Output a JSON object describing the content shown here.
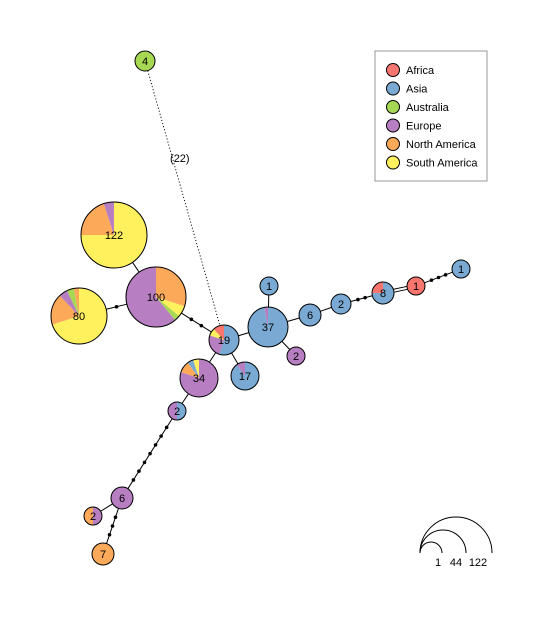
{
  "colors": {
    "Africa": "#f8766d",
    "Asia": "#7aaad3",
    "Australia": "#a6d854",
    "Europe": "#b77fc2",
    "North America": "#fca95a",
    "South America": "#fff05e"
  },
  "legend": [
    {
      "label": "Africa",
      "color": "#f8766d"
    },
    {
      "label": "Asia",
      "color": "#7aaad3"
    },
    {
      "label": "Australia",
      "color": "#a6d854"
    },
    {
      "label": "Europe",
      "color": "#b77fc2"
    },
    {
      "label": "North America",
      "color": "#fca95a"
    },
    {
      "label": "South America",
      "color": "#fff05e"
    }
  ],
  "nodes": [
    {
      "id": "n4",
      "count": "4",
      "slices": [
        [
          "Australia",
          1
        ]
      ]
    },
    {
      "id": "n122",
      "count": "122",
      "slices": [
        [
          "South America",
          0.75
        ],
        [
          "North America",
          0.2
        ],
        [
          "Europe",
          0.05
        ]
      ]
    },
    {
      "id": "n100",
      "count": "100",
      "slices": [
        [
          "North America",
          0.3
        ],
        [
          "South America",
          0.06
        ],
        [
          "Australia",
          0.03
        ],
        [
          "Europe",
          0.61
        ]
      ]
    },
    {
      "id": "n80",
      "count": "80",
      "slices": [
        [
          "South America",
          0.7
        ],
        [
          "North America",
          0.18
        ],
        [
          "Europe",
          0.05
        ],
        [
          "Australia",
          0.04
        ],
        [
          "North America",
          0.03
        ]
      ]
    },
    {
      "id": "n19",
      "count": "19",
      "slices": [
        [
          "Asia",
          0.55
        ],
        [
          "Europe",
          0.25
        ],
        [
          "South America",
          0.08
        ],
        [
          "Africa",
          0.12
        ]
      ]
    },
    {
      "id": "n34",
      "count": "34",
      "slices": [
        [
          "Europe",
          0.8
        ],
        [
          "North America",
          0.1
        ],
        [
          "Asia",
          0.05
        ],
        [
          "South America",
          0.05
        ]
      ]
    },
    {
      "id": "n17",
      "count": "17",
      "slices": [
        [
          "Asia",
          0.9
        ],
        [
          "Europe",
          0.1
        ]
      ]
    },
    {
      "id": "n37",
      "count": "37",
      "slices": [
        [
          "Asia",
          0.97
        ],
        [
          "Europe",
          0.03
        ]
      ]
    },
    {
      "id": "n1a",
      "count": "1",
      "slices": [
        [
          "Asia",
          1
        ]
      ]
    },
    {
      "id": "n2e",
      "count": "2",
      "slices": [
        [
          "Europe",
          1
        ]
      ]
    },
    {
      "id": "n6a",
      "count": "6",
      "slices": [
        [
          "Asia",
          1
        ]
      ]
    },
    {
      "id": "n2a",
      "count": "2",
      "slices": [
        [
          "Asia",
          1
        ]
      ]
    },
    {
      "id": "n8",
      "count": "8",
      "slices": [
        [
          "Asia",
          0.75
        ],
        [
          "Africa",
          0.25
        ]
      ]
    },
    {
      "id": "n1af",
      "count": "1",
      "slices": [
        [
          "Africa",
          1
        ]
      ]
    },
    {
      "id": "n1as",
      "count": "1",
      "slices": [
        [
          "Asia",
          1
        ]
      ]
    },
    {
      "id": "n2b",
      "count": "2",
      "slices": [
        [
          "Asia",
          0.5
        ],
        [
          "Europe",
          0.5
        ]
      ]
    },
    {
      "id": "n6e",
      "count": "6",
      "slices": [
        [
          "Europe",
          1
        ]
      ]
    },
    {
      "id": "n2c",
      "count": "2",
      "slices": [
        [
          "Europe",
          0.5
        ],
        [
          "North America",
          0.5
        ]
      ]
    },
    {
      "id": "n7",
      "count": "7",
      "slices": [
        [
          "North America",
          1
        ]
      ]
    }
  ],
  "edges": [
    {
      "from": "n4",
      "to": "n19",
      "style": "dotted",
      "label": "(22)",
      "steps": 0
    },
    {
      "from": "n122",
      "to": "n100",
      "steps": 0
    },
    {
      "from": "n80",
      "to": "n100",
      "steps": 1
    },
    {
      "from": "n100",
      "to": "n19",
      "steps": 2
    },
    {
      "from": "n19",
      "to": "n37",
      "steps": 0
    },
    {
      "from": "n19",
      "to": "n34",
      "steps": 0
    },
    {
      "from": "n19",
      "to": "n17",
      "steps": 0
    },
    {
      "from": "n37",
      "to": "n1a",
      "steps": 0
    },
    {
      "from": "n37",
      "to": "n2e",
      "steps": 0
    },
    {
      "from": "n37",
      "to": "n6a",
      "steps": 0
    },
    {
      "from": "n6a",
      "to": "n2a",
      "steps": 0
    },
    {
      "from": "n2a",
      "to": "n8",
      "steps": 2
    },
    {
      "from": "n8",
      "to": "n1af",
      "steps": 0,
      "double": true
    },
    {
      "from": "n1af",
      "to": "n1as",
      "steps": 3
    },
    {
      "from": "n34",
      "to": "n2b",
      "steps": 0
    },
    {
      "from": "n2b",
      "to": "n6e",
      "steps": 7
    },
    {
      "from": "n6e",
      "to": "n2c",
      "steps": 0
    },
    {
      "from": "n6e",
      "to": "n7",
      "steps": 3
    }
  ],
  "scale": {
    "labels": [
      "1",
      "44",
      "122"
    ]
  }
}
